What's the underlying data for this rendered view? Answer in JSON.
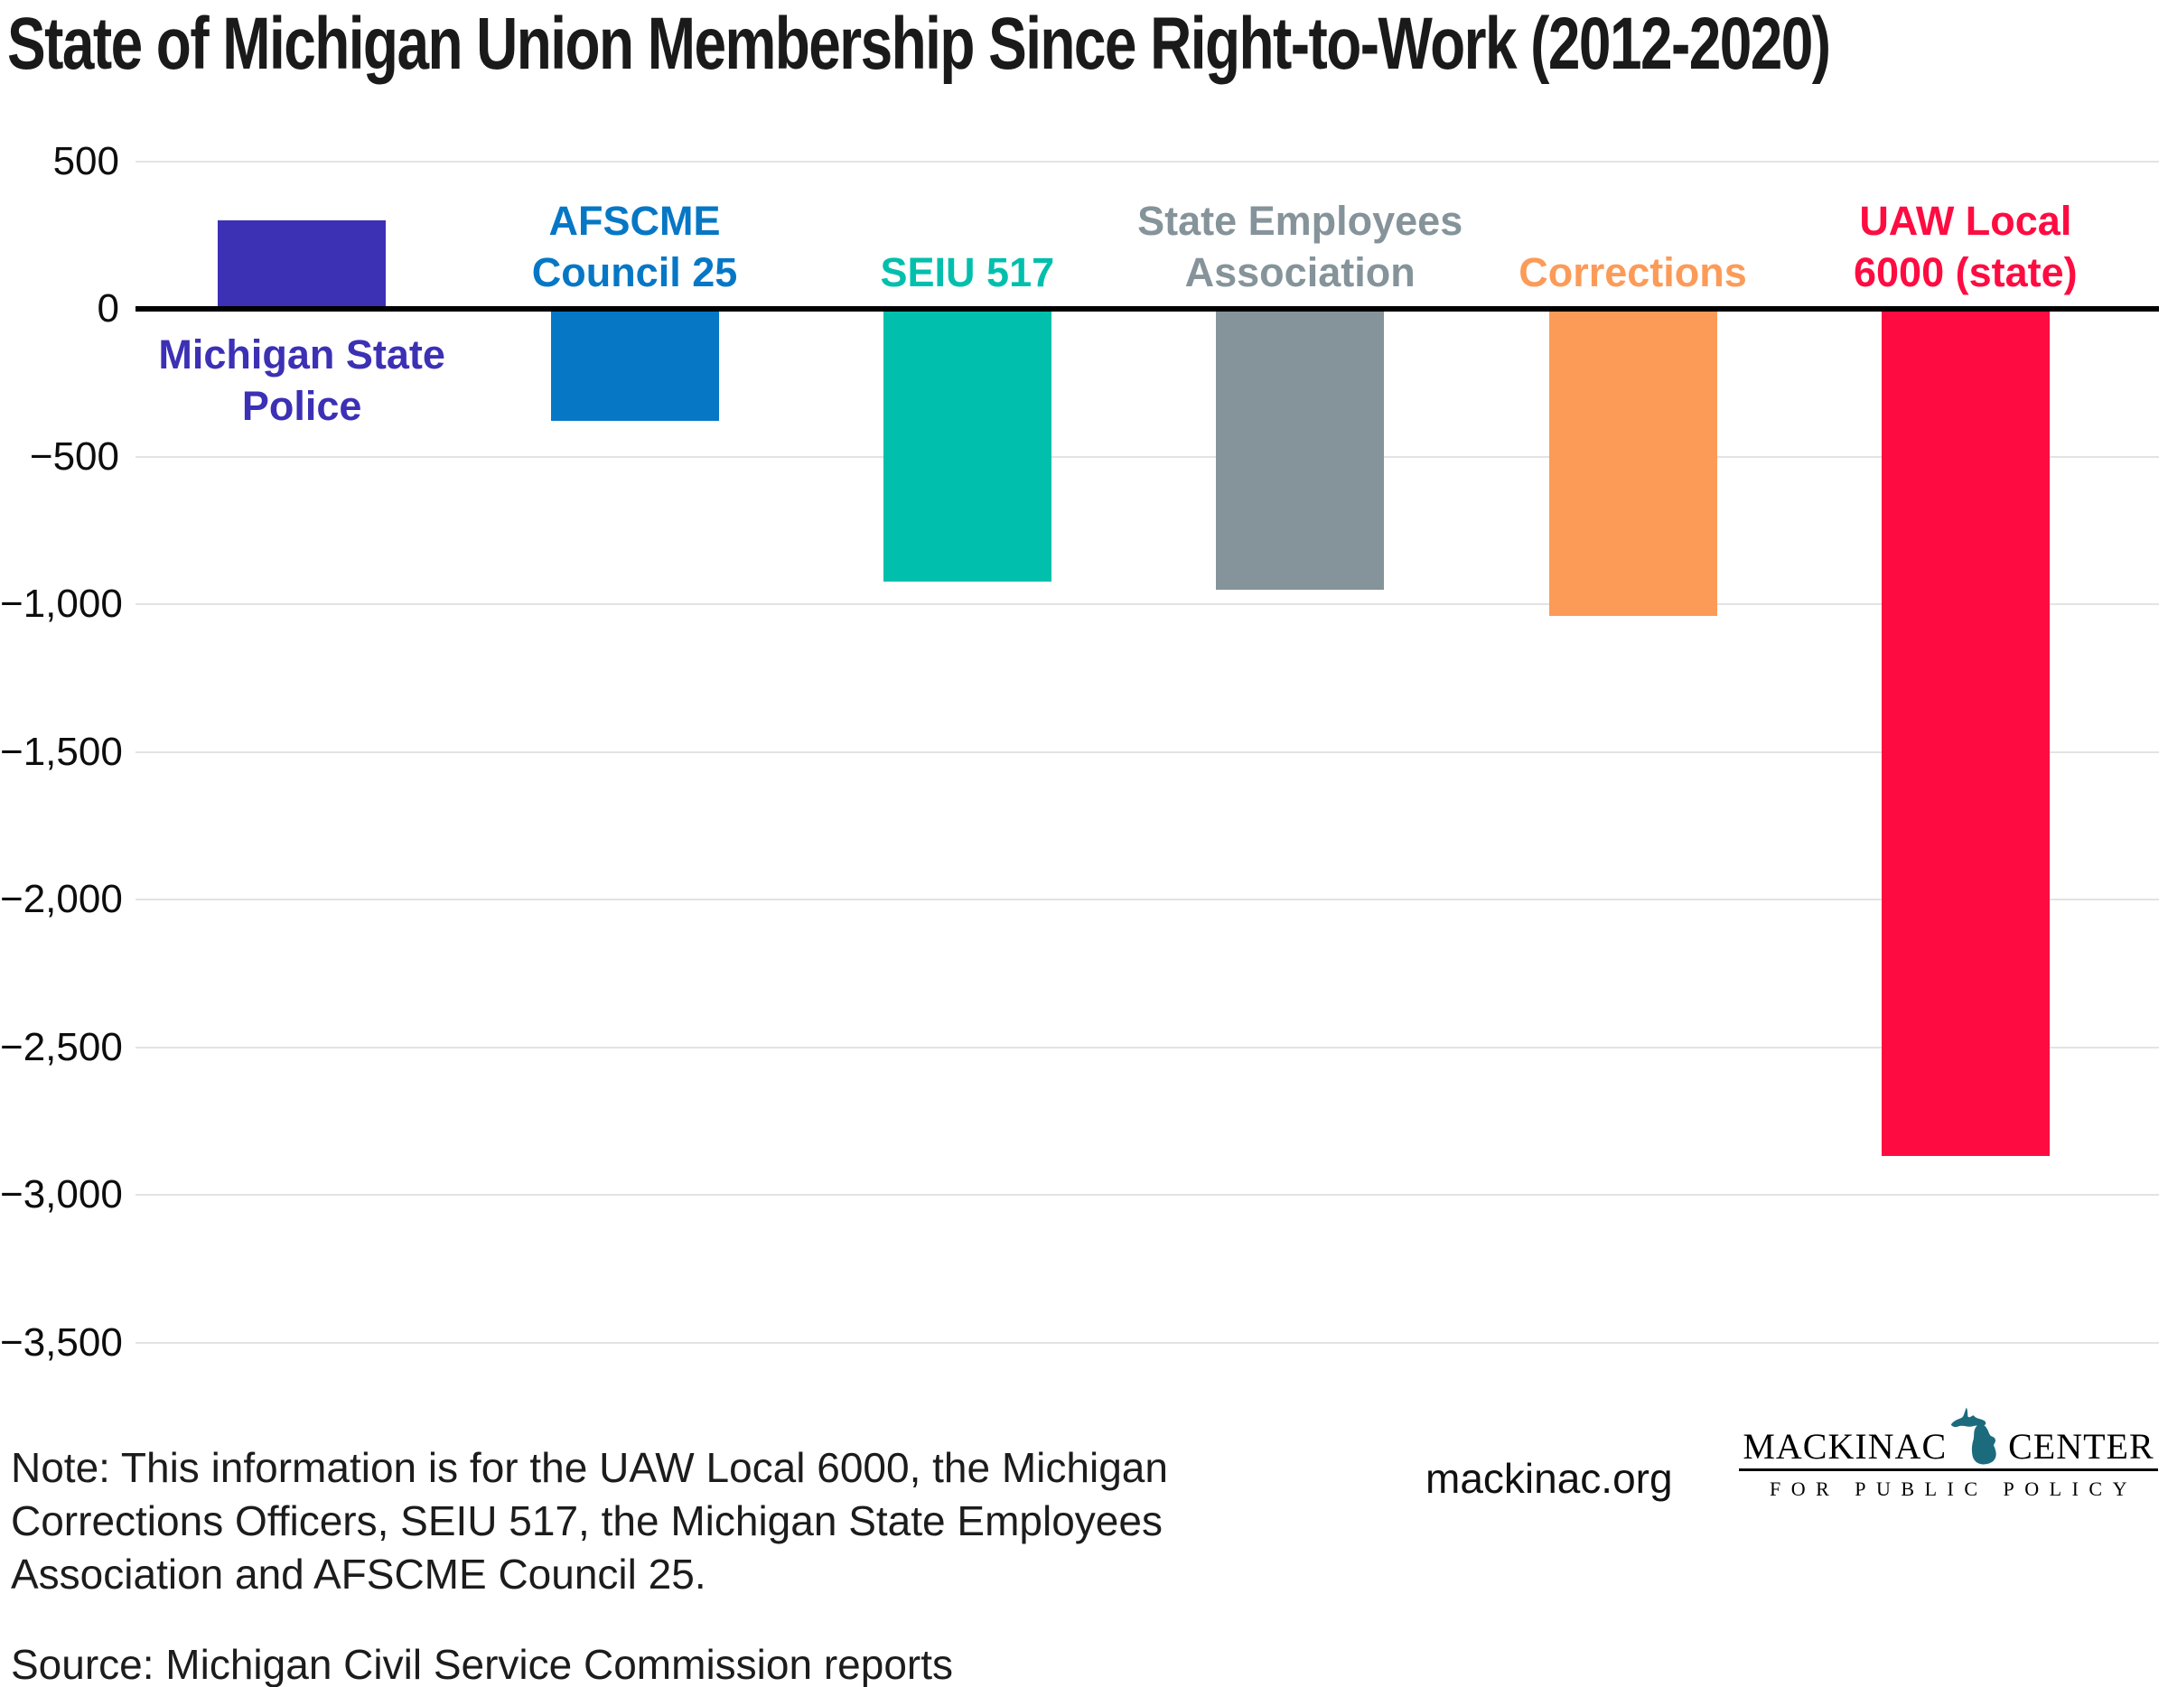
{
  "title": "State of Michigan Union Membership Since Right-to-Work (2012-2020)",
  "chart_data": {
    "type": "bar",
    "title": "State of Michigan Union Membership Since Right-to-Work (2012-2020)",
    "categories": [
      "Michigan State\nPolice",
      "AFSCME\nCouncil 25",
      "SEIU 517",
      "State Employees\nAssociation",
      "Corrections",
      "UAW Local\n6000 (state)"
    ],
    "values": [
      300,
      -380,
      -925,
      -950,
      -1040,
      -2870
    ],
    "bar_colors": [
      "#3c30b5",
      "#0677c5",
      "#00bfac",
      "#85939a",
      "#fc9b58",
      "#fe0c41"
    ],
    "xlabel": "",
    "ylabel": "",
    "ylim": [
      -3500,
      500
    ],
    "ytick_values": [
      500,
      0,
      -500,
      -1000,
      -1500,
      -2000,
      -2500,
      -3000,
      -3500
    ],
    "ytick_labels": [
      "500",
      "0",
      "−500",
      "−1,000",
      "−1,500",
      "−2,000",
      "−2,500",
      "−3,000",
      "−3,500"
    ],
    "grid": "horizontal-light",
    "zero_line_color": "#000000",
    "legend_position": "none"
  },
  "footer": {
    "note": "Note: This information is for the UAW Local 6000, the Michigan\nCorrections Officers, SEIU 517, the Michigan State Employees\nAssociation and AFSCME Council 25.",
    "source": "Source: Michigan Civil Service Commission reports",
    "website": "mackinac.org",
    "logo": {
      "word1": "MACKINAC",
      "word2": "CENTER",
      "tagline": "FOR PUBLIC POLICY",
      "map_color": "#1b6b7d"
    }
  }
}
